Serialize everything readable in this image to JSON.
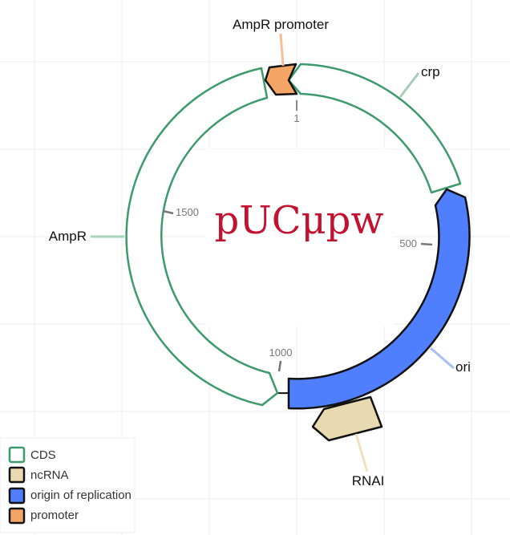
{
  "plasmid": {
    "name": "pUCμpw"
  },
  "ticks": [
    {
      "label": "1"
    },
    {
      "label": "500"
    },
    {
      "label": "1000"
    },
    {
      "label": "1500"
    }
  ],
  "features": [
    {
      "name": "crp",
      "type": "CDS"
    },
    {
      "name": "AmpR",
      "type": "CDS"
    },
    {
      "name": "AmpR promoter",
      "type": "promoter"
    },
    {
      "name": "ori",
      "type": "origin of replication"
    },
    {
      "name": "RNAI",
      "type": "ncRNA"
    }
  ],
  "legend": {
    "items": [
      {
        "label": "CDS",
        "fill": "#ffffff",
        "stroke": "#3d9a6b"
      },
      {
        "label": "ncRNA",
        "fill": "#e8d9b0",
        "stroke": "#111111"
      },
      {
        "label": "origin of replication",
        "fill": "#4f7fff",
        "stroke": "#111111"
      },
      {
        "label": "promoter",
        "fill": "#f4a465",
        "stroke": "#111111"
      }
    ]
  },
  "colors": {
    "cds_stroke": "#3d9a6b",
    "ori_fill": "#4f7fff",
    "promoter_fill": "#f4a465",
    "ncrna_fill": "#e8d9b0",
    "title": "#c3122f",
    "grid": "#ececec"
  }
}
